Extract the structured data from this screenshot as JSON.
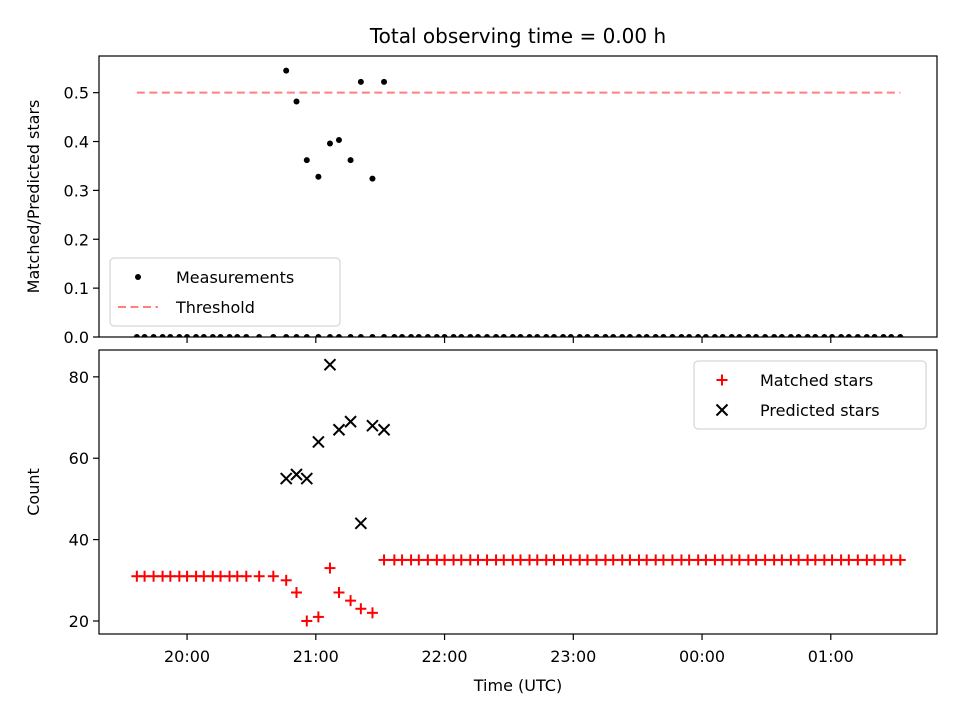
{
  "chart_data": [
    {
      "type": "scatter",
      "title": "Total observing time = 0.00 h",
      "xlabel": "",
      "ylabel": "Matched/Predicted stars",
      "ylim": [
        0,
        0.575
      ],
      "yticks": [
        0.0,
        0.1,
        0.2,
        0.3,
        0.4,
        0.5
      ],
      "ytick_labels": [
        "0.0",
        "0.1",
        "0.2",
        "0.3",
        "0.4",
        "0.5"
      ],
      "xlim": [
        -0.684,
        5.825
      ],
      "xticks": [
        0,
        1,
        2,
        3,
        4,
        5
      ],
      "grid": false,
      "legend": "lower-left",
      "series": [
        {
          "name": "Measurements",
          "kind": "scatter",
          "color": "#000000",
          "x": [
            -0.39,
            -0.33,
            -0.26,
            -0.19,
            -0.13,
            -0.06,
            0.0,
            0.07,
            0.13,
            0.2,
            0.26,
            0.33,
            0.39,
            0.46,
            0.56,
            0.67,
            0.77,
            0.85,
            0.93,
            1.02,
            1.11,
            1.18,
            1.27,
            1.35,
            1.44,
            1.53,
            1.61,
            1.67,
            1.74,
            1.8,
            1.87,
            1.94,
            2.0,
            2.07,
            2.13,
            2.2,
            2.26,
            2.33,
            2.4,
            2.46,
            2.53,
            2.59,
            2.66,
            2.72,
            2.79,
            2.85,
            2.92,
            2.98,
            3.05,
            3.11,
            3.18,
            3.25,
            3.31,
            3.38,
            3.44,
            3.51,
            3.57,
            3.64,
            3.7,
            3.77,
            3.84,
            3.9,
            3.97,
            4.03,
            4.1,
            4.16,
            4.23,
            4.29,
            4.36,
            4.42,
            4.49,
            4.56,
            4.62,
            4.69,
            4.75,
            4.82,
            4.88,
            4.95,
            5.01,
            5.08,
            5.14,
            5.21,
            5.28,
            5.34,
            5.41,
            5.47,
            5.54
          ],
          "y": [
            0,
            0,
            0,
            0,
            0,
            0,
            0,
            0,
            0,
            0,
            0,
            0,
            0,
            0,
            0,
            0,
            0,
            0,
            0,
            0,
            0,
            0,
            0,
            0,
            0,
            0,
            0,
            0,
            0,
            0,
            0,
            0,
            0,
            0,
            0,
            0,
            0,
            0,
            0,
            0,
            0,
            0,
            0,
            0,
            0,
            0,
            0,
            0,
            0,
            0,
            0,
            0,
            0,
            0,
            0,
            0,
            0,
            0,
            0,
            0,
            0,
            0,
            0,
            0,
            0,
            0,
            0,
            0,
            0,
            0,
            0,
            0,
            0,
            0,
            0,
            0,
            0,
            0,
            0,
            0,
            0,
            0,
            0,
            0,
            0,
            0,
            0
          ]
        },
        {
          "name": "",
          "kind": "scatter",
          "color": "#000000",
          "x": [
            0.77,
            0.85,
            0.93,
            1.02,
            1.11,
            1.18,
            1.27,
            1.35,
            1.44,
            1.53
          ],
          "y": [
            0.545,
            0.482,
            0.362,
            0.328,
            0.396,
            0.403,
            0.362,
            0.522,
            0.324,
            0.522
          ]
        },
        {
          "name": "Threshold",
          "kind": "line",
          "style": "dashed",
          "color": "#ff7f7f",
          "x": [
            -0.39,
            5.54
          ],
          "y": [
            0.5,
            0.5
          ]
        }
      ]
    },
    {
      "type": "scatter",
      "title": "",
      "xlabel": "Time (UTC)",
      "ylabel": "Count",
      "ylim": [
        16.8,
        86.6
      ],
      "yticks": [
        20,
        40,
        60,
        80
      ],
      "ytick_labels": [
        "20",
        "40",
        "60",
        "80"
      ],
      "xlim": [
        -0.684,
        5.825
      ],
      "xticks": [
        0,
        1,
        2,
        3,
        4,
        5
      ],
      "xtick_labels": [
        "20:00",
        "21:00",
        "22:00",
        "23:00",
        "00:00",
        "01:00"
      ],
      "grid": false,
      "legend": "upper-right",
      "series": [
        {
          "name": "Matched stars",
          "kind": "plus",
          "color": "#ff0000",
          "x": [
            -0.39,
            -0.33,
            -0.26,
            -0.19,
            -0.13,
            -0.06,
            0.0,
            0.07,
            0.13,
            0.2,
            0.26,
            0.33,
            0.39,
            0.46,
            0.56,
            0.67,
            0.77,
            0.85,
            0.93,
            1.02,
            1.11,
            1.18,
            1.27,
            1.35,
            1.44,
            1.53,
            1.61,
            1.67,
            1.74,
            1.8,
            1.87,
            1.94,
            2.0,
            2.07,
            2.13,
            2.2,
            2.26,
            2.33,
            2.4,
            2.46,
            2.53,
            2.59,
            2.66,
            2.72,
            2.79,
            2.85,
            2.92,
            2.98,
            3.05,
            3.11,
            3.18,
            3.25,
            3.31,
            3.38,
            3.44,
            3.51,
            3.57,
            3.64,
            3.7,
            3.77,
            3.84,
            3.9,
            3.97,
            4.03,
            4.1,
            4.16,
            4.23,
            4.29,
            4.36,
            4.42,
            4.49,
            4.56,
            4.62,
            4.69,
            4.75,
            4.82,
            4.88,
            4.95,
            5.01,
            5.08,
            5.14,
            5.21,
            5.28,
            5.34,
            5.41,
            5.47,
            5.54
          ],
          "y": [
            31,
            31,
            31,
            31,
            31,
            31,
            31,
            31,
            31,
            31,
            31,
            31,
            31,
            31,
            31,
            31,
            30,
            27,
            20,
            21,
            33,
            27,
            25,
            23,
            22,
            35,
            35,
            35,
            35,
            35,
            35,
            35,
            35,
            35,
            35,
            35,
            35,
            35,
            35,
            35,
            35,
            35,
            35,
            35,
            35,
            35,
            35,
            35,
            35,
            35,
            35,
            35,
            35,
            35,
            35,
            35,
            35,
            35,
            35,
            35,
            35,
            35,
            35,
            35,
            35,
            35,
            35,
            35,
            35,
            35,
            35,
            35,
            35,
            35,
            35,
            35,
            35,
            35,
            35,
            35,
            35,
            35,
            35,
            35,
            35,
            35,
            35
          ]
        },
        {
          "name": "Predicted stars",
          "kind": "x",
          "color": "#000000",
          "x": [
            0.77,
            0.85,
            0.93,
            1.02,
            1.11,
            1.18,
            1.27,
            1.35,
            1.44,
            1.53
          ],
          "y": [
            55,
            56,
            55,
            64,
            83,
            67,
            69,
            44,
            68,
            67
          ]
        }
      ]
    }
  ]
}
